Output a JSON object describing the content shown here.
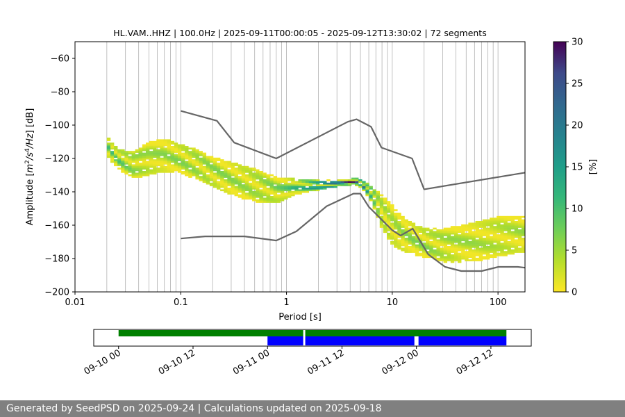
{
  "chart_data": [
    {
      "type": "heatmap",
      "title": "HL.VAM..HHZ | 100.0Hz | 2025-09-11T00:00:05 - 2025-09-12T13:30:02 | 72 segments",
      "xlabel": "Period [s]",
      "ylabel": "Amplitude [m^2/s^4/Hz] [dB]",
      "x_scale": "log",
      "xlim": [
        0.01,
        180
      ],
      "ylim": [
        -200,
        -50
      ],
      "x_ticks": [
        0.01,
        0.1,
        1,
        10,
        100
      ],
      "x_tick_labels": [
        "0.01",
        "0.1",
        "1",
        "10",
        "100"
      ],
      "y_ticks": [
        -200,
        -180,
        -160,
        -140,
        -120,
        -100,
        -80,
        -60
      ],
      "y_tick_labels": [
        "−200",
        "−180",
        "−160",
        "−140",
        "−120",
        "−100",
        "−80",
        "−60"
      ],
      "grid": "x-major-and-minor",
      "colorbar": {
        "label": "[%]",
        "colormap": "viridis_r",
        "range": [
          0,
          30
        ],
        "ticks": [
          0,
          5,
          10,
          15,
          20,
          25,
          30
        ],
        "tick_labels": [
          "0",
          "5",
          "10",
          "15",
          "20",
          "25",
          "30"
        ]
      },
      "series": [
        {
          "role": "new-high-noise-model",
          "color": "#666666",
          "x": [
            0.1,
            0.22,
            0.32,
            0.8,
            3.8,
            4.6,
            6.3,
            7.9,
            15.4,
            20,
            180
          ],
          "y": [
            -91.5,
            -97.4,
            -110.5,
            -120,
            -98,
            -96.5,
            -101,
            -113.5,
            -120,
            -138.5,
            -128.5
          ]
        },
        {
          "role": "new-low-noise-model",
          "color": "#666666",
          "x": [
            0.1,
            0.17,
            0.4,
            0.8,
            1.24,
            2.4,
            4.3,
            5,
            6,
            10,
            12,
            15.6,
            21.9,
            31.6,
            45,
            70,
            101,
            154,
            180
          ],
          "y": [
            -168,
            -166.7,
            -166.7,
            -169.2,
            -163.7,
            -148.6,
            -141.1,
            -141.1,
            -149,
            -163,
            -166.2,
            -162.1,
            -177.5,
            -185,
            -187.5,
            -187.5,
            -185,
            -185,
            -185.5
          ]
        }
      ],
      "bands": [
        {
          "x": [
            0.02,
            0.025,
            0.035,
            0.05,
            0.07,
            0.1,
            0.15,
            0.2,
            0.3,
            0.5,
            0.8,
            1.2,
            2,
            3,
            4,
            4.8,
            5.5,
            6.5,
            8,
            10,
            13,
            17,
            22,
            30,
            45,
            70,
            100,
            180
          ],
          "center": [
            -112,
            -120,
            -124,
            -120,
            -118,
            -120,
            -124,
            -128,
            -132,
            -136,
            -139,
            -137,
            -136,
            -135,
            -134,
            -134,
            -137,
            -142,
            -152,
            -160,
            -166,
            -169,
            -171,
            -172,
            -171,
            -169,
            -167,
            -165
          ],
          "half_width": [
            6,
            6,
            8,
            10,
            10,
            9,
            9,
            9,
            10,
            10,
            8,
            5,
            3,
            2,
            2,
            2,
            3,
            5,
            10,
            12,
            10,
            9,
            9,
            10,
            11,
            12,
            12,
            11
          ]
        }
      ]
    },
    {
      "type": "timeline",
      "x_tick_labels": [
        "09-10 00",
        "09-10 12",
        "09-11 00",
        "09-11 12",
        "09-12 00",
        "09-12 12"
      ],
      "x_ticks": [
        "2025-09-10 00:00",
        "2025-09-10 12:00",
        "2025-09-11 00:00",
        "2025-09-11 12:00",
        "2025-09-12 00:00",
        "2025-09-12 12:00"
      ],
      "xlim": [
        "2025-09-09 20:00",
        "2025-09-12 18:30"
      ],
      "rows": [
        {
          "color": "#008000",
          "spans": [
            [
              "2025-09-10 00:00",
              "2025-09-11 05:45"
            ],
            [
              "2025-09-11 06:05",
              "2025-09-12 14:30"
            ]
          ]
        },
        {
          "color": "#0000ff",
          "spans": [
            [
              "2025-09-11 00:00",
              "2025-09-11 05:45"
            ],
            [
              "2025-09-11 06:05",
              "2025-09-11 23:40"
            ],
            [
              "2025-09-12 00:20",
              "2025-09-12 14:30"
            ]
          ]
        }
      ]
    }
  ],
  "footer": {
    "text": "Generated by SeedPSD on 2025-09-24 | Calculations updated on 2025-09-18"
  }
}
